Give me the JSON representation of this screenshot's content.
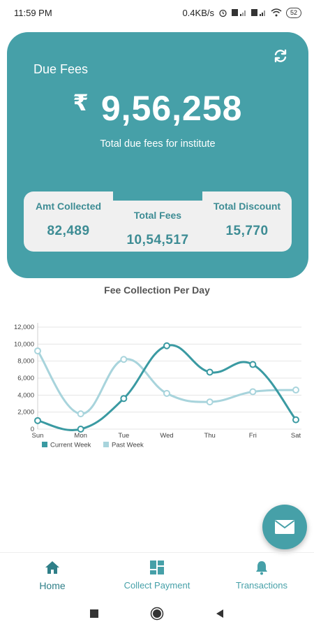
{
  "status_bar": {
    "time": "11:59 PM",
    "speed": "0.4KB/s",
    "battery": "52"
  },
  "due_fees": {
    "title": "Due Fees",
    "currency": "₹",
    "amount": "9,56,258",
    "subtitle": "Total due fees for institute"
  },
  "stats": [
    {
      "label": "Amt Collected",
      "value": "82,489"
    },
    {
      "label": "Total Fees",
      "value": "10,54,517"
    },
    {
      "label": "Total Discount",
      "value": "15,770"
    }
  ],
  "chart_title": "Fee Collection Per Day",
  "chart_data": {
    "type": "line",
    "title": "Fee Collection Per Day",
    "categories": [
      "Sun",
      "Mon",
      "Tue",
      "Wed",
      "Thu",
      "Fri",
      "Sat"
    ],
    "yticks": [
      "0",
      "2,000",
      "4,000",
      "6,000",
      "8,000",
      "10,000",
      "12,000"
    ],
    "ylim": [
      0,
      12000
    ],
    "grid": true,
    "legend_position": "bottom-left",
    "series": [
      {
        "name": "Current Week",
        "color": "#3a9aa2",
        "values": [
          1000,
          0,
          3600,
          9800,
          6700,
          7600,
          1100
        ]
      },
      {
        "name": "Past Week",
        "color": "#a8d4dc",
        "values": [
          9200,
          1800,
          8200,
          4200,
          3200,
          4400,
          4600
        ]
      }
    ]
  },
  "nav": {
    "items": [
      {
        "label": "Home"
      },
      {
        "label": "Collect Payment"
      },
      {
        "label": "Transactions"
      }
    ]
  },
  "colors": {
    "primary": "#46a0a8",
    "stat_text": "#3d8c94"
  },
  "icons": {
    "refresh": "refresh-icon",
    "fab": "envelope-icon",
    "home": "home-icon",
    "collect": "grid-icon",
    "transactions": "bell-icon"
  }
}
